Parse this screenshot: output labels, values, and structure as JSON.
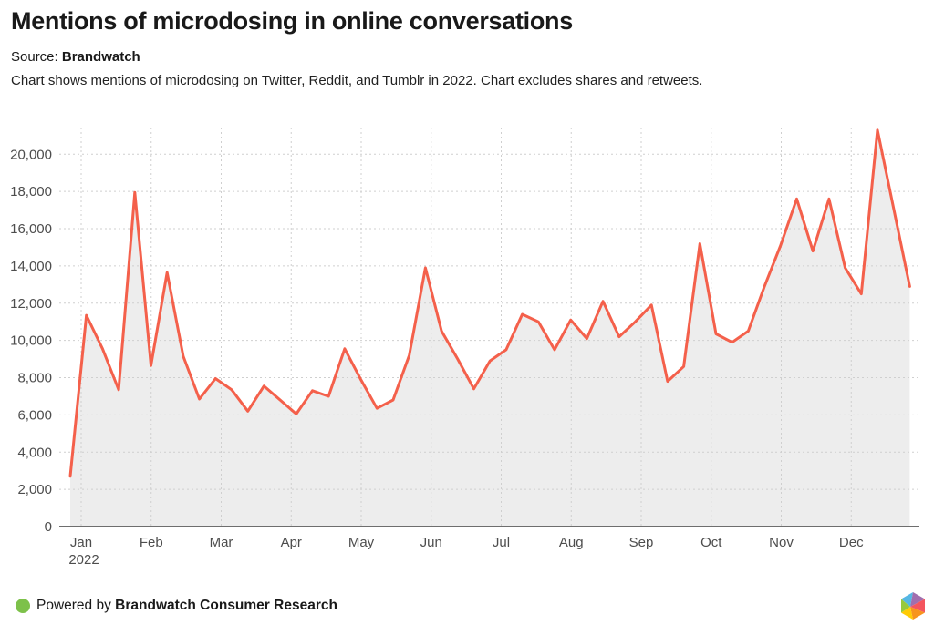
{
  "header": {
    "title": "Mentions of microdosing in online conversations",
    "source_label": "Source:",
    "source_name": "Brandwatch",
    "description": "Chart shows mentions of microdosing on Twitter, Reddit, and Tumblr in 2022. Chart excludes shares and retweets."
  },
  "chart_data": {
    "type": "area",
    "title": "Mentions of microdosing in online conversations",
    "xlabel": "",
    "ylabel": "",
    "x_unit": "weekly buckets, Jan–Dec 2022",
    "x_tick_labels": [
      "Jan",
      "Feb",
      "Mar",
      "Apr",
      "May",
      "Jun",
      "Jul",
      "Aug",
      "Sep",
      "Oct",
      "Nov",
      "Dec"
    ],
    "x_first_tick_sublabel": "2022",
    "y_tick_labels": [
      "0",
      "2,000",
      "4,000",
      "6,000",
      "8,000",
      "10,000",
      "12,000",
      "14,000",
      "16,000",
      "18,000",
      "20,000"
    ],
    "ytick_step": 2000,
    "ylim": [
      0,
      21400
    ],
    "grid": "dashed",
    "legend": "none",
    "line_color": "#f4604b",
    "fill_color": "#ededed",
    "grid_color": "#cfcfcf",
    "axis_line_color": "#6e6e6e",
    "tick_label_color": "#4d4d4d",
    "values": [
      2700,
      11350,
      9550,
      7350,
      17950,
      8650,
      13650,
      9150,
      6850,
      7950,
      7350,
      6200,
      7550,
      6800,
      6050,
      7300,
      7000,
      9550,
      7900,
      6350,
      6800,
      9200,
      13900,
      10500,
      9000,
      7400,
      8900,
      9500,
      11400,
      11000,
      9500,
      11100,
      10100,
      12100,
      10200,
      11000,
      11900,
      7800,
      8600,
      15200,
      10350,
      9900,
      10500,
      12900,
      15100,
      17600,
      14800,
      17600,
      13900,
      12500,
      21300,
      17100,
      12900
    ]
  },
  "footer": {
    "powered_by": "Powered by",
    "brand": "Brandwatch Consumer Research",
    "dot_color": "#7dc14a",
    "logo": "brandwatch-hexagon-logo",
    "logo_colors": {
      "blue": "#55b7e4",
      "purple": "#a06eae",
      "red": "#f4555e",
      "orange": "#f7941d",
      "yellow": "#ffcb05",
      "green": "#97c93d"
    }
  }
}
